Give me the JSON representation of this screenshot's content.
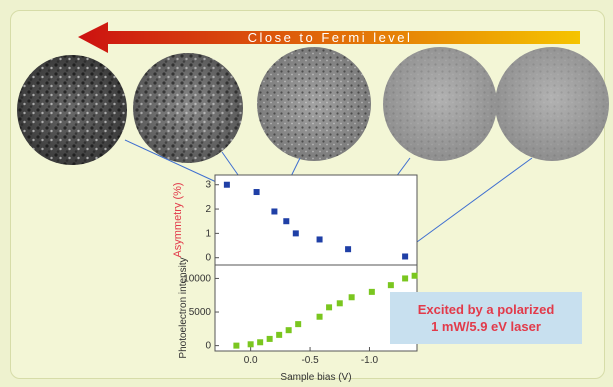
{
  "arrow": {
    "label": "Close to Fermi level",
    "color_start": "#cc1111",
    "color_end": "#f5c400"
  },
  "annotation": {
    "line1": "Excited by a polarized",
    "line2": "1 mW/5.9 eV laser",
    "background": "#c8e0ef",
    "text_color": "#e23a4a"
  },
  "images": [
    {
      "name": "pattern-1",
      "tone": "dark"
    },
    {
      "name": "pattern-2",
      "tone": "mid-dark"
    },
    {
      "name": "pattern-3",
      "tone": "mid"
    },
    {
      "name": "pattern-4",
      "tone": "smooth"
    },
    {
      "name": "pattern-5",
      "tone": "smooth"
    }
  ],
  "chart_data": [
    {
      "type": "scatter",
      "ylabel": "Asymmetry (%)",
      "ylabel_color": "#e23a4a",
      "series_color": "#1f3fa6",
      "xlim": [
        0.3,
        -1.4
      ],
      "ylim": [
        -0.3,
        3.4
      ],
      "yticks": [
        "0",
        "1",
        "2",
        "3"
      ],
      "x": [
        0.2,
        -0.05,
        -0.2,
        -0.3,
        -0.38,
        -0.58,
        -0.82,
        -1.3
      ],
      "y": [
        3.0,
        2.7,
        1.9,
        1.5,
        1.0,
        0.75,
        0.35,
        0.05
      ]
    },
    {
      "type": "scatter",
      "ylabel": "Photoelectron intensity",
      "xlabel": "Sample bias (V)",
      "series_color": "#7ac61f",
      "xlim": [
        0.3,
        -1.4
      ],
      "ylim": [
        -800,
        12000
      ],
      "yticks": [
        "0",
        "5000",
        "10000"
      ],
      "xticks": [
        "0.0",
        "-0.5",
        "-1.0"
      ],
      "x": [
        0.12,
        0.0,
        -0.08,
        -0.16,
        -0.24,
        -0.32,
        -0.4,
        -0.58,
        -0.66,
        -0.75,
        -0.85,
        -1.02,
        -1.18,
        -1.3,
        -1.38
      ],
      "y": [
        0,
        200,
        500,
        1000,
        1600,
        2300,
        3200,
        4300,
        5700,
        6300,
        7200,
        8000,
        9000,
        10000,
        10400
      ]
    }
  ]
}
